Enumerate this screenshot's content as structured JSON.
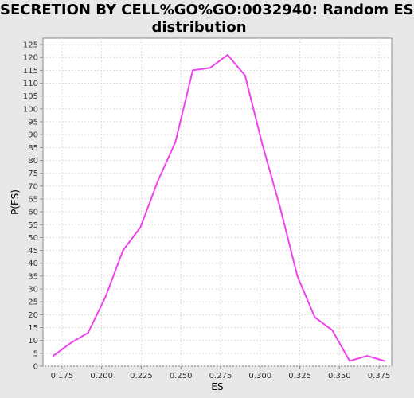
{
  "chart_data": {
    "type": "line",
    "title_lines": [
      "SECRETION BY CELL%GO%GO:0032940: Random ES",
      "distribution"
    ],
    "xlabel": "ES",
    "ylabel": "P(ES)",
    "xlim": [
      0.163,
      0.383
    ],
    "ylim": [
      0,
      127.5
    ],
    "x_ticks": [
      "0.175",
      "0.200",
      "0.225",
      "0.250",
      "0.275",
      "0.300",
      "0.325",
      "0.350",
      "0.375"
    ],
    "x_tick_values": [
      0.175,
      0.2,
      0.225,
      0.25,
      0.275,
      0.3,
      0.325,
      0.35,
      0.375
    ],
    "y_ticks": [
      0,
      5,
      10,
      15,
      20,
      25,
      30,
      35,
      40,
      45,
      50,
      55,
      60,
      65,
      70,
      75,
      80,
      85,
      90,
      95,
      100,
      105,
      110,
      115,
      120,
      125
    ],
    "grid": true,
    "series": [
      {
        "color": "#ee44ee",
        "x": [
          0.1695,
          0.1805,
          0.1915,
          0.2025,
          0.2135,
          0.2245,
          0.2355,
          0.2465,
          0.2575,
          0.2685,
          0.2795,
          0.2905,
          0.3015,
          0.3125,
          0.3235,
          0.3345,
          0.3455,
          0.3565,
          0.3675,
          0.3785
        ],
        "values": [
          4,
          9,
          13,
          27,
          45,
          54,
          72,
          87,
          115,
          116,
          121,
          113,
          86,
          62,
          35,
          19,
          14,
          2,
          4,
          2
        ]
      }
    ]
  }
}
